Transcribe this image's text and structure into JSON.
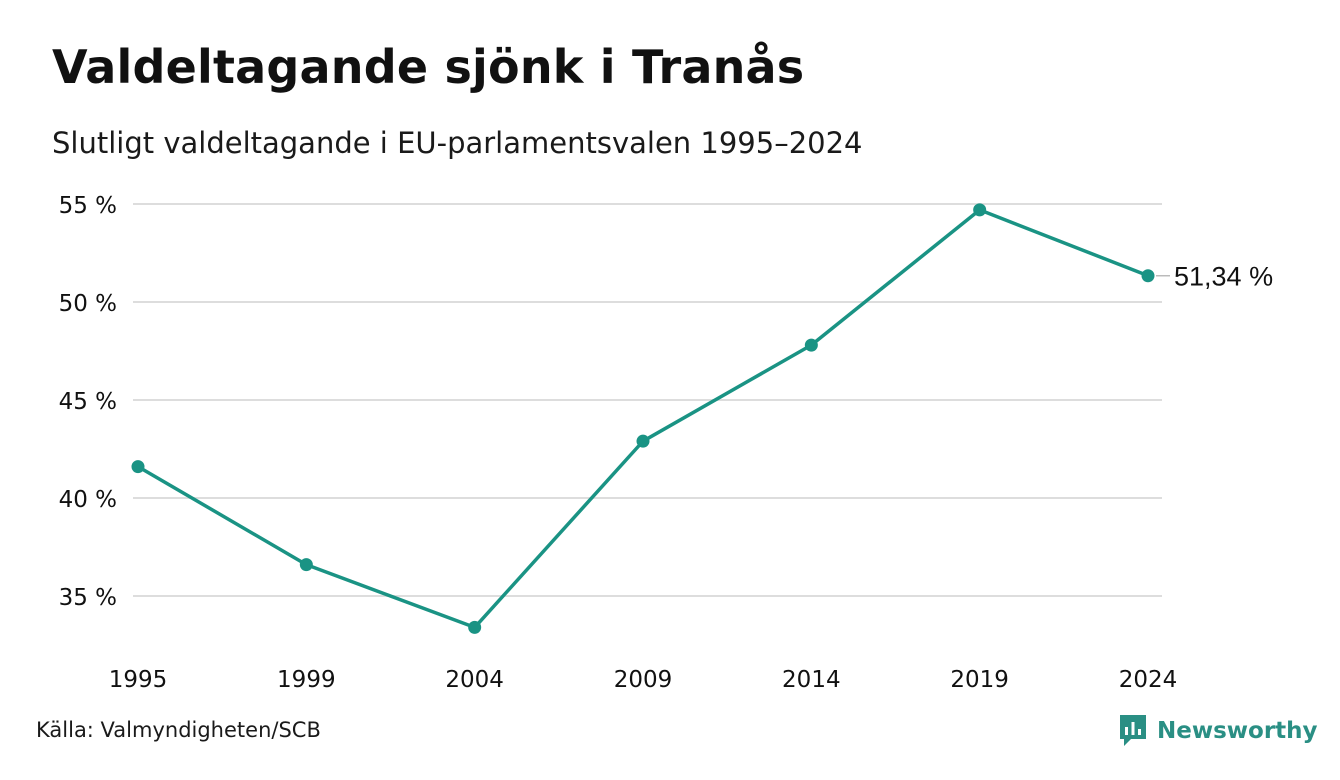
{
  "header": {
    "title": "Valdeltagande sjönk i Tranås",
    "subtitle": "Slutligt valdeltagande i EU-parlamentsvalen 1995–2024"
  },
  "footer": {
    "source": "Källa: Valmyndigheten/SCB",
    "brand": "Newsworthy",
    "brand_icon": "newsworthy-logo-icon"
  },
  "colors": {
    "line": "#1a9384",
    "grid": "#dddddd",
    "text": "#111111"
  },
  "chart_data": {
    "type": "line",
    "x": [
      "1995",
      "1999",
      "2004",
      "2009",
      "2014",
      "2019",
      "2024"
    ],
    "series": [
      {
        "values": [
          41.6,
          36.6,
          33.4,
          42.9,
          47.8,
          54.7,
          51.34
        ]
      }
    ],
    "y_ticks": [
      35,
      40,
      45,
      50,
      55
    ],
    "y_tick_labels": [
      "35 %",
      "40 %",
      "45 %",
      "50 %",
      "55 %"
    ],
    "ylim": [
      33.4,
      55
    ],
    "last_point_label": "51,34 %",
    "grid": true,
    "legend": "none"
  }
}
